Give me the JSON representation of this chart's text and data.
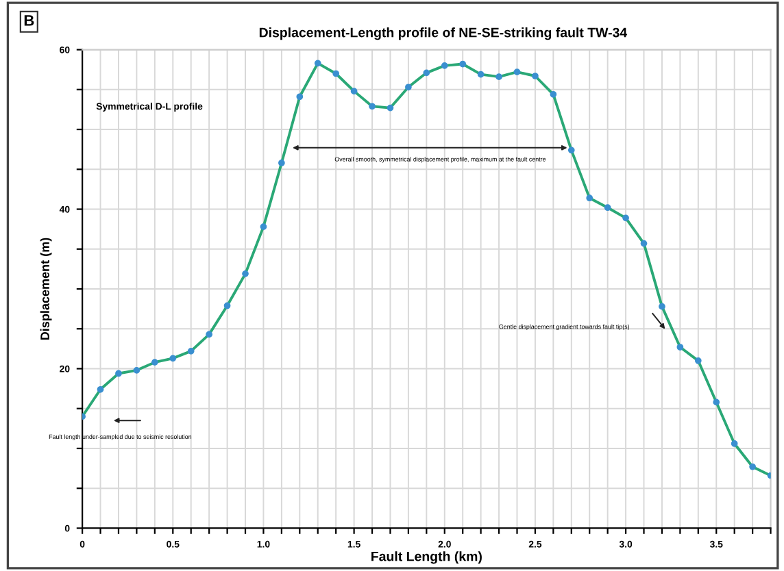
{
  "chart_data": {
    "type": "line",
    "title": "Displacement-Length profile of NE-SE-striking fault TW-34",
    "subtitle": "B",
    "xlabel": "Fault Length (km)",
    "ylabel": "Displacement (m)",
    "x": [
      0,
      0.1,
      0.2,
      0.3,
      0.4,
      0.5,
      0.6,
      0.7,
      0.8,
      0.9,
      1.0,
      1.1,
      1.2,
      1.3,
      1.4,
      1.5,
      1.6,
      1.7,
      1.8,
      1.9,
      2.0,
      2.1,
      2.2,
      2.3,
      2.4,
      2.5,
      2.6,
      2.7,
      2.8,
      2.9,
      3.0,
      3.1,
      3.2,
      3.3,
      3.4,
      3.5,
      3.6,
      3.7,
      3.8
    ],
    "series": [
      {
        "color": "#2aa876",
        "values": [
          14.0,
          17.4,
          19.4,
          19.8,
          20.8,
          21.3,
          22.2,
          24.3,
          27.9,
          31.9,
          37.8,
          45.8,
          54.1,
          58.3,
          57.0,
          54.8,
          52.9,
          52.7,
          55.3,
          57.1,
          58.0,
          58.2,
          56.9,
          56.6,
          57.2,
          56.7,
          54.4,
          47.4,
          41.4,
          40.2,
          38.9,
          35.7,
          27.8,
          22.7,
          21.0,
          15.8,
          10.6,
          7.7,
          6.6
        ]
      }
    ],
    "xlim": [
      0,
      3.8
    ],
    "ylim": [
      0,
      60
    ],
    "xticks": [
      0,
      {
        "value": 0.1,
        "label": null
      },
      {
        "value": 0.2,
        "label": null
      },
      {
        "value": 0.3,
        "label": null
      },
      {
        "value": 0.4,
        "label": null
      },
      0.5,
      {
        "value": 0.6,
        "label": null
      },
      {
        "value": 0.7,
        "label": null
      },
      {
        "value": 0.8,
        "label": null
      },
      {
        "value": 0.9,
        "label": null
      },
      {
        "value": 1.0,
        "label": "1.0"
      },
      {
        "value": 1.1,
        "label": null
      },
      {
        "value": 1.2,
        "label": null
      },
      {
        "value": 1.3,
        "label": null
      },
      {
        "value": 1.4,
        "label": null
      },
      1.5,
      {
        "value": 1.6,
        "label": null
      },
      {
        "value": 1.7,
        "label": null
      },
      {
        "value": 1.8,
        "label": null
      },
      {
        "value": 1.9,
        "label": null
      },
      {
        "value": 2.0,
        "label": "2.0"
      },
      {
        "value": 2.1,
        "label": null
      },
      {
        "value": 2.2,
        "label": null
      },
      {
        "value": 2.3,
        "label": null
      },
      {
        "value": 2.4,
        "label": null
      },
      2.5,
      {
        "value": 2.6,
        "label": null
      },
      {
        "value": 2.7,
        "label": null
      },
      {
        "value": 2.8,
        "label": null
      },
      {
        "value": 2.9,
        "label": null
      },
      {
        "value": 3.0,
        "label": "3.0"
      },
      {
        "value": 3.1,
        "label": null
      },
      {
        "value": 3.2,
        "label": null
      },
      {
        "value": 3.3,
        "label": null
      },
      {
        "value": 3.4,
        "label": null
      },
      3.5,
      {
        "value": 3.6,
        "label": null
      },
      {
        "value": 3.7,
        "label": null
      },
      {
        "value": 3.8,
        "label": null
      }
    ],
    "yticks": [
      0,
      {
        "value": 5,
        "label": null
      },
      {
        "value": 10,
        "label": null
      },
      {
        "value": 15,
        "label": null
      },
      20,
      {
        "value": 25,
        "label": null
      },
      {
        "value": 30,
        "label": null
      },
      {
        "value": 35,
        "label": null
      },
      40,
      {
        "value": 45,
        "label": null
      },
      {
        "value": 50,
        "label": null
      },
      {
        "value": 55,
        "label": null
      },
      60
    ],
    "grid": true,
    "marker": "circle",
    "line_style": "solid",
    "annotations": [
      "Symmetrical D-L profile",
      "Overall smooth, symmetrical displacement profile, maximum at the fault centre",
      "Fault length under-sampled due to seismic resolution",
      "Gentle displacement gradient towards fault tip(s)"
    ]
  }
}
